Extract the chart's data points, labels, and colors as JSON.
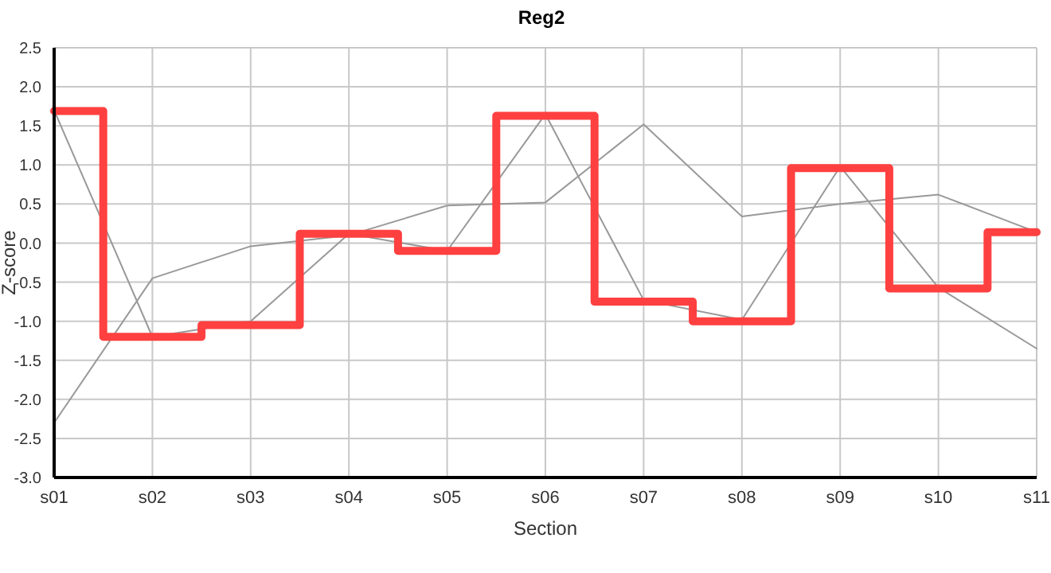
{
  "chart_data": {
    "type": "line",
    "title": "Reg2",
    "xlabel": "Section",
    "ylabel": "Z-score",
    "categories": [
      "s01",
      "s02",
      "s03",
      "s04",
      "s05",
      "s06",
      "s07",
      "s08",
      "s09",
      "s10",
      "s11"
    ],
    "series": [
      {
        "color": "#999999",
        "values": [
          1.7,
          -1.2,
          -1.0,
          0.12,
          -0.1,
          1.65,
          -0.73,
          -0.98,
          0.98,
          -0.57,
          -1.35
        ]
      },
      {
        "color": "#999999",
        "values": [
          -2.3,
          -0.45,
          -0.04,
          0.1,
          0.48,
          0.52,
          1.52,
          0.34,
          0.5,
          0.62,
          0.14
        ]
      },
      {
        "type": "step",
        "color": "#ff4040",
        "values": [
          1.69,
          -1.2,
          -1.05,
          0.12,
          -0.1,
          1.63,
          -0.75,
          -1.0,
          0.96,
          -0.58,
          0.14
        ]
      }
    ],
    "ylim": [
      -3.0,
      2.5
    ],
    "yticks": [
      {
        "value": -3,
        "label": "-3.0"
      },
      {
        "value": -2.5,
        "label": "-2.5"
      },
      {
        "value": -2,
        "label": "-2.0"
      },
      {
        "value": -1.5,
        "label": "-1.5"
      },
      {
        "value": -1,
        "label": "-1.0"
      },
      {
        "value": -0.5,
        "label": "-0.5"
      },
      {
        "value": 0,
        "label": "0.0"
      },
      {
        "value": 0.5,
        "label": "0.5"
      },
      {
        "value": 1,
        "label": "1.0"
      },
      {
        "value": 1.5,
        "label": "1.5"
      },
      {
        "value": 2,
        "label": "2.0"
      },
      {
        "value": 2.5,
        "label": "2.5"
      }
    ],
    "grid": true,
    "legend": false,
    "marker": "none",
    "line_style": "solid"
  }
}
